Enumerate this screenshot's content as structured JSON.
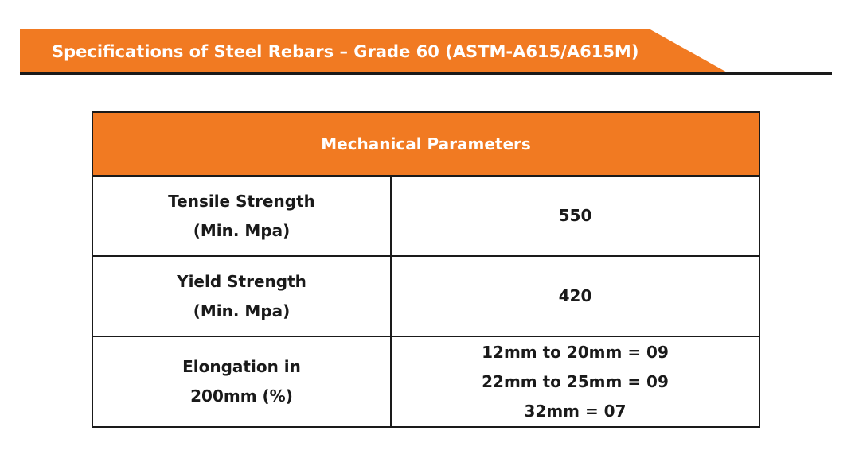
{
  "banner": {
    "title": "Specifications of Steel Rebars – Grade 60 (ASTM-A615/A615M)",
    "accent_color": "#f17a22",
    "rule_color": "#1a1a1a"
  },
  "table": {
    "header": "Mechanical Parameters",
    "header_color": "#f17a22",
    "rows": [
      {
        "label_lines": [
          "Tensile Strength",
          "(Min. Mpa)"
        ],
        "value_lines": [
          "550"
        ]
      },
      {
        "label_lines": [
          "Yield Strength",
          "(Min. Mpa)"
        ],
        "value_lines": [
          "420"
        ]
      },
      {
        "label_lines": [
          "Elongation in",
          "200mm (%)"
        ],
        "value_lines": [
          "12mm to 20mm = 09",
          "22mm to 25mm = 09",
          "32mm = 07"
        ]
      }
    ]
  }
}
